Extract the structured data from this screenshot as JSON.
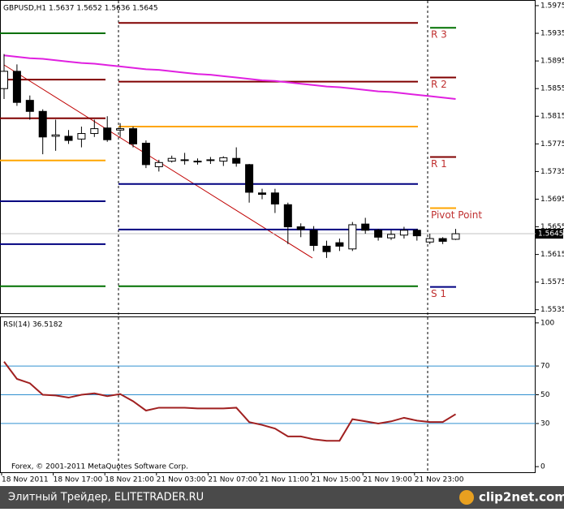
{
  "chart_data": [
    {
      "type": "candlestick",
      "title": "GBPUSD,H1  1.5637 1.5652 1.5636 1.5645",
      "categories": [
        "18 Nov 2011",
        null,
        null,
        null,
        "18 Nov 17:00",
        null,
        null,
        null,
        "18 Nov 21:00",
        null,
        null,
        null,
        "21 Nov 03:00",
        null,
        null,
        null,
        "21 Nov 07:00",
        null,
        null,
        null,
        "21 Nov 11:00",
        null,
        null,
        null,
        "21 Nov 15:00",
        null,
        null,
        null,
        "21 Nov 19:00",
        null,
        null,
        null,
        "21 Nov 23:00",
        null,
        null,
        null
      ],
      "open": [
        1.5855,
        1.588,
        1.5838,
        1.5822,
        1.5786,
        1.5786,
        1.5782,
        1.579,
        1.5798,
        1.5795,
        1.5797,
        1.5776,
        1.5742,
        1.575,
        1.5752,
        1.5749,
        1.5751,
        1.575,
        1.5754,
        1.5745,
        1.5704,
        1.5704,
        1.5687,
        1.5655,
        1.565,
        1.5627,
        1.5632,
        1.5623,
        1.5659,
        1.565,
        1.5639,
        1.5643,
        1.565,
        1.5633,
        1.5638,
        1.5637
      ],
      "high": [
        1.5905,
        1.589,
        1.5845,
        1.5825,
        1.581,
        1.5795,
        1.58,
        1.581,
        1.5815,
        1.5805,
        1.58,
        1.578,
        1.5752,
        1.5758,
        1.5762,
        1.5754,
        1.5756,
        1.5757,
        1.577,
        1.5746,
        1.571,
        1.571,
        1.569,
        1.566,
        1.5656,
        1.5635,
        1.5638,
        1.5662,
        1.5668,
        1.5652,
        1.565,
        1.5655,
        1.5652,
        1.5645,
        1.564,
        1.5652
      ],
      "low": [
        1.584,
        1.583,
        1.581,
        1.576,
        1.5765,
        1.5775,
        1.577,
        1.5785,
        1.5778,
        1.5785,
        1.577,
        1.574,
        1.5735,
        1.5748,
        1.5745,
        1.5745,
        1.5746,
        1.5743,
        1.5742,
        1.569,
        1.5695,
        1.5675,
        1.563,
        1.564,
        1.562,
        1.561,
        1.562,
        1.562,
        1.5645,
        1.5635,
        1.5636,
        1.5638,
        1.5635,
        1.563,
        1.563,
        1.5636
      ],
      "close": [
        1.588,
        1.5835,
        1.5822,
        1.5785,
        1.5788,
        1.578,
        1.579,
        1.5797,
        1.5781,
        1.5797,
        1.5775,
        1.5745,
        1.5748,
        1.5754,
        1.5751,
        1.575,
        1.5752,
        1.5755,
        1.5747,
        1.5705,
        1.5702,
        1.5688,
        1.5655,
        1.5651,
        1.5628,
        1.5619,
        1.5627,
        1.5658,
        1.565,
        1.564,
        1.5644,
        1.565,
        1.5642,
        1.5638,
        1.5634,
        1.5645
      ],
      "lines": [
        {
          "color": "#e020e0",
          "values": [
            1.5903,
            1.5901,
            1.5899,
            1.5898,
            1.5896,
            1.5894,
            1.5892,
            1.5891,
            1.5889,
            1.5887,
            1.5885,
            1.5883,
            1.5882,
            1.588,
            1.5878,
            1.5876,
            1.5875,
            1.5873,
            1.5871,
            1.5869,
            1.5867,
            1.5866,
            1.5864,
            1.5862,
            1.586,
            1.5858,
            1.5857,
            1.5855,
            1.5853,
            1.5851,
            1.585,
            1.5848,
            1.5846,
            1.5844,
            1.5842,
            1.584
          ]
        }
      ],
      "pivot_levels": [
        {
          "color": "#007000",
          "values": [
            1.5935,
            null,
            1.5943
          ],
          "label": "R 3"
        },
        {
          "color": "#800000",
          "values": [
            1.5868,
            1.595,
            1.5871
          ],
          "label": "R 2"
        },
        {
          "color": "#800000",
          "values": [
            1.5812,
            1.5865,
            1.5756
          ],
          "label": "R 1"
        },
        {
          "color": "#ffa500",
          "values": [
            1.5751,
            1.58,
            1.5682
          ],
          "label": "Pivot Point"
        },
        {
          "color": "#000080",
          "values": [
            1.5692,
            1.5717,
            1.5568
          ],
          "label": "S 1"
        },
        {
          "color": "#000080",
          "values": [
            1.563,
            1.5651,
            null
          ]
        },
        {
          "color": "#007000",
          "values": [
            1.5569,
            1.5569,
            null
          ]
        }
      ],
      "current_price": 1.5645,
      "ylim": [
        1.553,
        1.5982
      ],
      "yticks": [
        1.5975,
        1.5935,
        1.5895,
        1.5855,
        1.5815,
        1.5775,
        1.5735,
        1.5695,
        1.5655,
        1.5615,
        1.5575,
        1.5535
      ]
    },
    {
      "type": "line",
      "title": "RSI(14) 36.5182",
      "color": "#a02020",
      "values": [
        73,
        61,
        58,
        50,
        49.5,
        48,
        50,
        51,
        49,
        50.5,
        45.5,
        39,
        41,
        41,
        41,
        40.5,
        40.5,
        40.5,
        41,
        31,
        29,
        26.5,
        21,
        21,
        19,
        18,
        18,
        33,
        31.5,
        30,
        31.5,
        34,
        32,
        31,
        31,
        36.5
      ],
      "levels": [
        70,
        50,
        30
      ],
      "ylim": [
        -3.9,
        103.9
      ],
      "yticks": [
        100,
        70,
        50,
        30,
        0
      ]
    }
  ],
  "copyright": "Forex, © 2001-2011 MetaQuotes Software Corp.",
  "footer": {
    "left": "Элитный Трейдер, ELITETRADER.RU",
    "logo": "clip2net.com"
  }
}
